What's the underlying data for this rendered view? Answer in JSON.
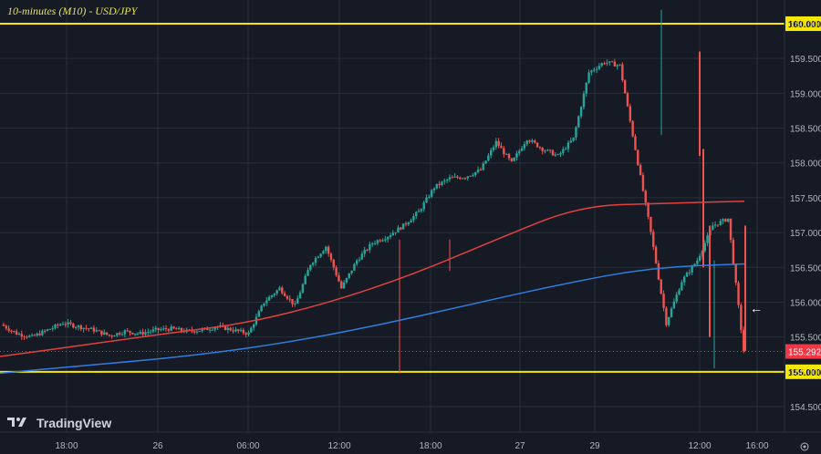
{
  "header": {
    "title": "10-minutes (M10) - USD/JPY"
  },
  "watermark": {
    "brand": "TradingView",
    "logo": "tradingview-logo"
  },
  "colors": {
    "background": "#161a25",
    "grid": "#2a2e39",
    "text": "#b2b5be",
    "title": "#e6e05a",
    "up": "#26a69a",
    "down": "#ef5350",
    "ma_red": "#e3413f",
    "ma_blue": "#2f7de1",
    "level_line": "#f5e700",
    "level_label_bg": "#f5e700",
    "price_label_bg": "#f23645"
  },
  "chart_data": {
    "type": "candlestick",
    "title": "10-minutes (M10) - USD/JPY",
    "ylim": [
      154.5,
      160.25
    ],
    "yticks": [
      "154.500",
      "155.000",
      "155.500",
      "156.000",
      "156.500",
      "157.000",
      "157.500",
      "158.000",
      "158.500",
      "159.000",
      "159.500",
      "160.000"
    ],
    "xticks": [
      "18:00",
      "26",
      "06:00",
      "12:00",
      "18:00",
      "27",
      "29",
      "12:00",
      "16:00"
    ],
    "horizontal_levels": [
      {
        "value": "160.000"
      },
      {
        "value": "155.000"
      }
    ],
    "last_price": "155.292",
    "indicator_series": [
      "red moving average",
      "blue moving average"
    ],
    "approx_price_path": [
      155.68,
      155.55,
      155.5,
      155.6,
      155.7,
      155.65,
      155.6,
      155.52,
      155.58,
      155.55,
      155.6,
      155.62,
      155.58,
      155.6,
      155.65,
      155.6,
      155.55,
      156.0,
      156.2,
      155.95,
      156.55,
      156.8,
      156.2,
      156.6,
      156.85,
      156.95,
      157.1,
      157.3,
      157.65,
      157.78,
      157.8,
      157.9,
      158.3,
      158.0,
      158.35,
      158.2,
      158.1,
      158.35,
      159.3,
      159.45,
      159.4,
      158.2,
      157.0,
      155.7,
      156.3,
      156.6,
      157.1,
      157.2,
      155.3
    ],
    "red_ma_path": [
      155.22,
      155.38,
      155.55,
      155.7,
      156.0,
      156.4,
      156.9,
      157.38,
      157.42,
      157.45
    ],
    "blue_ma_path": [
      154.98,
      155.1,
      155.22,
      155.4,
      155.65,
      155.95,
      156.25,
      156.5,
      156.55
    ]
  },
  "ui": {
    "settings_icon": "gear-icon",
    "arrow_icon": "left-arrow-icon"
  }
}
